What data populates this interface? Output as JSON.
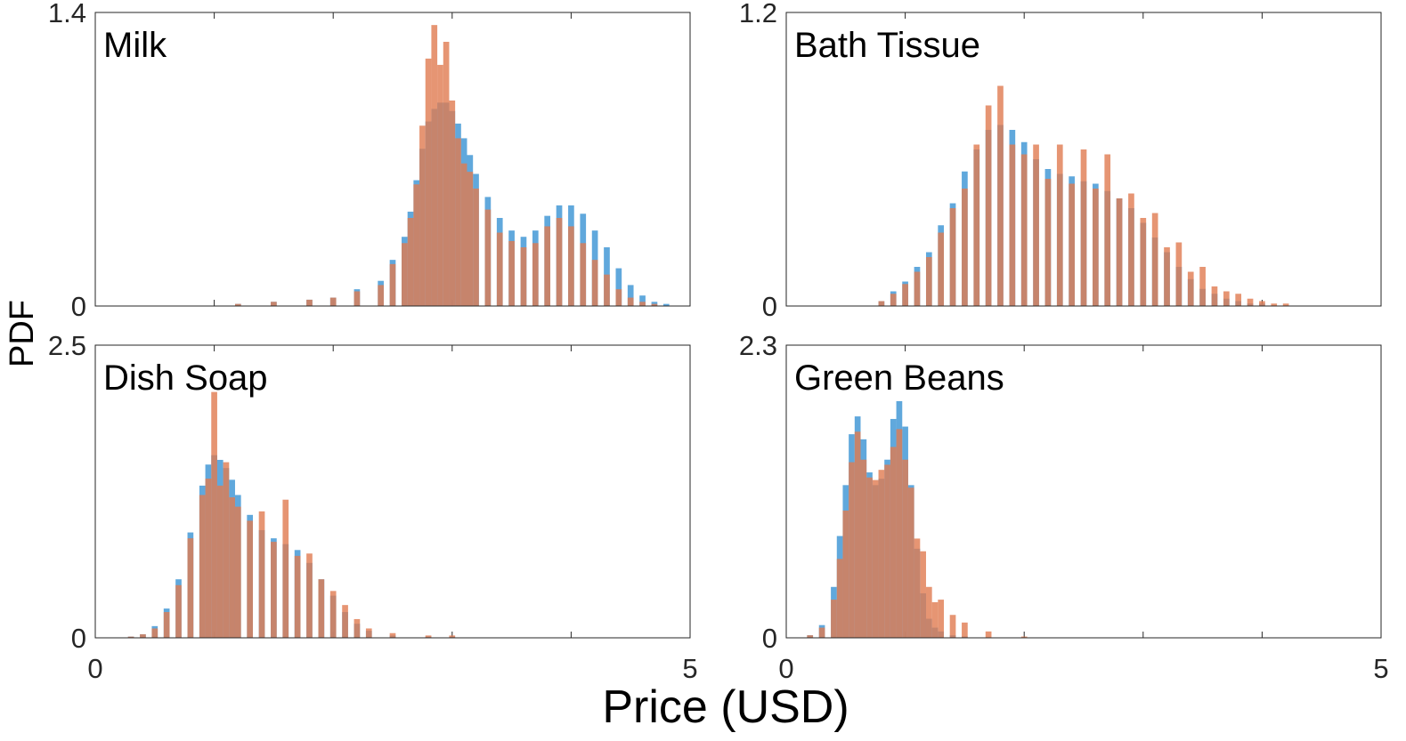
{
  "figure": {
    "xlabel": "Price (USD)",
    "ylabel": "PDF"
  },
  "colors": {
    "series_a": "#4f9fd8",
    "series_b": "#e07a50",
    "overlap": "#a66f5f",
    "axis": "#262626"
  },
  "chart_data": [
    {
      "type": "bar",
      "title": "Milk",
      "xlim": [
        0,
        5
      ],
      "ylim": [
        0,
        1.4
      ],
      "x_ticks": [
        "0",
        "5"
      ],
      "y_ticks": [
        "0",
        "1.4"
      ],
      "bin_width": 0.05,
      "series": [
        {
          "color": "#4f9fd8",
          "x": [
            1.2,
            1.5,
            1.8,
            2.0,
            2.2,
            2.4,
            2.5,
            2.6,
            2.65,
            2.7,
            2.75,
            2.8,
            2.85,
            2.9,
            2.95,
            3.0,
            3.05,
            3.1,
            3.15,
            3.2,
            3.3,
            3.4,
            3.5,
            3.6,
            3.7,
            3.8,
            3.9,
            4.0,
            4.1,
            4.2,
            4.3,
            4.4,
            4.5,
            4.6,
            4.7,
            4.8
          ],
          "y": [
            0.01,
            0.02,
            0.03,
            0.04,
            0.08,
            0.12,
            0.22,
            0.33,
            0.45,
            0.6,
            0.75,
            0.88,
            0.94,
            0.97,
            0.97,
            0.93,
            0.87,
            0.8,
            0.72,
            0.63,
            0.52,
            0.42,
            0.36,
            0.33,
            0.36,
            0.43,
            0.48,
            0.48,
            0.44,
            0.36,
            0.28,
            0.18,
            0.1,
            0.05,
            0.02,
            0.01
          ]
        },
        {
          "color": "#e07a50",
          "x": [
            1.2,
            1.5,
            1.8,
            2.0,
            2.2,
            2.4,
            2.5,
            2.6,
            2.65,
            2.7,
            2.75,
            2.8,
            2.85,
            2.9,
            2.95,
            3.0,
            3.05,
            3.1,
            3.15,
            3.2,
            3.3,
            3.4,
            3.5,
            3.6,
            3.7,
            3.8,
            3.9,
            4.0,
            4.1,
            4.2,
            4.3,
            4.4,
            4.5,
            4.6,
            4.7,
            4.8
          ],
          "y": [
            0.01,
            0.02,
            0.03,
            0.04,
            0.07,
            0.1,
            0.2,
            0.3,
            0.42,
            0.58,
            0.86,
            1.18,
            1.34,
            1.15,
            1.26,
            0.98,
            0.8,
            0.68,
            0.64,
            0.56,
            0.46,
            0.35,
            0.31,
            0.28,
            0.3,
            0.38,
            0.42,
            0.38,
            0.3,
            0.22,
            0.15,
            0.08,
            0.04,
            0.02,
            0.01,
            0.0
          ]
        }
      ]
    },
    {
      "type": "bar",
      "title": "Bath Tissue",
      "xlim": [
        0,
        5
      ],
      "ylim": [
        0,
        1.2
      ],
      "x_ticks": [
        "0",
        "5"
      ],
      "y_ticks": [
        "0",
        "1.2"
      ],
      "bin_width": 0.05,
      "series": [
        {
          "color": "#4f9fd8",
          "x": [
            0.6,
            0.8,
            0.9,
            1.0,
            1.1,
            1.2,
            1.3,
            1.4,
            1.5,
            1.6,
            1.7,
            1.8,
            1.9,
            2.0,
            2.1,
            2.2,
            2.3,
            2.4,
            2.5,
            2.6,
            2.7,
            2.8,
            2.9,
            3.0,
            3.1,
            3.2,
            3.3,
            3.4,
            3.5,
            3.6,
            3.7,
            3.8,
            3.9,
            4.0,
            4.1,
            4.2
          ],
          "y": [
            0.0,
            0.02,
            0.06,
            0.1,
            0.16,
            0.22,
            0.33,
            0.42,
            0.55,
            0.64,
            0.72,
            0.74,
            0.72,
            0.67,
            0.6,
            0.56,
            0.54,
            0.53,
            0.51,
            0.5,
            0.47,
            0.44,
            0.4,
            0.34,
            0.28,
            0.22,
            0.16,
            0.11,
            0.07,
            0.05,
            0.03,
            0.02,
            0.01,
            0.01,
            0.0,
            0.0
          ]
        },
        {
          "color": "#e07a50",
          "x": [
            0.6,
            0.8,
            0.9,
            1.0,
            1.1,
            1.2,
            1.3,
            1.4,
            1.5,
            1.6,
            1.7,
            1.8,
            1.9,
            2.0,
            2.1,
            2.2,
            2.3,
            2.4,
            2.5,
            2.6,
            2.7,
            2.8,
            2.9,
            3.0,
            3.1,
            3.2,
            3.3,
            3.4,
            3.5,
            3.6,
            3.7,
            3.8,
            3.9,
            4.0,
            4.1,
            4.2
          ],
          "y": [
            0.0,
            0.02,
            0.05,
            0.09,
            0.14,
            0.2,
            0.3,
            0.4,
            0.48,
            0.66,
            0.82,
            0.9,
            0.66,
            0.62,
            0.66,
            0.52,
            0.66,
            0.5,
            0.64,
            0.48,
            0.62,
            0.44,
            0.46,
            0.36,
            0.38,
            0.24,
            0.26,
            0.14,
            0.16,
            0.08,
            0.06,
            0.05,
            0.03,
            0.02,
            0.01,
            0.01
          ]
        }
      ]
    },
    {
      "type": "bar",
      "title": "Dish Soap",
      "xlim": [
        0,
        5
      ],
      "ylim": [
        0,
        2.5
      ],
      "x_ticks": [
        "0",
        "5"
      ],
      "y_ticks": [
        "0",
        "2.5"
      ],
      "bin_width": 0.05,
      "series": [
        {
          "color": "#4f9fd8",
          "x": [
            0.3,
            0.4,
            0.5,
            0.6,
            0.7,
            0.8,
            0.9,
            0.95,
            1.0,
            1.05,
            1.1,
            1.15,
            1.2,
            1.3,
            1.4,
            1.5,
            1.6,
            1.7,
            1.8,
            1.9,
            2.0,
            2.1,
            2.2,
            2.3,
            2.5,
            2.8,
            3.0
          ],
          "y": [
            0.01,
            0.03,
            0.1,
            0.25,
            0.5,
            0.9,
            1.3,
            1.48,
            1.56,
            1.52,
            1.45,
            1.35,
            1.22,
            1.05,
            0.92,
            0.85,
            0.8,
            0.75,
            0.64,
            0.5,
            0.36,
            0.22,
            0.12,
            0.06,
            0.02,
            0.01,
            0.01
          ]
        },
        {
          "color": "#e07a50",
          "x": [
            0.3,
            0.4,
            0.5,
            0.6,
            0.7,
            0.8,
            0.9,
            0.95,
            1.0,
            1.05,
            1.1,
            1.15,
            1.2,
            1.3,
            1.4,
            1.5,
            1.6,
            1.7,
            1.8,
            1.9,
            2.0,
            2.1,
            2.2,
            2.3,
            2.5,
            2.8,
            3.0
          ],
          "y": [
            0.01,
            0.03,
            0.08,
            0.22,
            0.45,
            0.85,
            1.22,
            1.36,
            2.1,
            1.3,
            1.5,
            1.2,
            1.12,
            1.0,
            1.08,
            0.82,
            1.18,
            0.7,
            0.72,
            0.5,
            0.4,
            0.28,
            0.16,
            0.08,
            0.04,
            0.02,
            0.02
          ]
        }
      ]
    },
    {
      "type": "bar",
      "title": "Green Beans",
      "xlim": [
        0,
        5
      ],
      "ylim": [
        0,
        2.3
      ],
      "x_ticks": [
        "0",
        "5"
      ],
      "y_ticks": [
        "0",
        "2.3"
      ],
      "bin_width": 0.05,
      "series": [
        {
          "color": "#4f9fd8",
          "x": [
            0.2,
            0.3,
            0.4,
            0.45,
            0.5,
            0.55,
            0.6,
            0.65,
            0.7,
            0.75,
            0.8,
            0.85,
            0.9,
            0.95,
            1.0,
            1.05,
            1.1,
            1.15,
            1.2,
            1.25,
            1.3,
            1.4,
            1.5,
            1.7,
            2.0
          ],
          "y": [
            0.02,
            0.1,
            0.4,
            0.8,
            1.2,
            1.6,
            1.74,
            1.56,
            1.3,
            1.2,
            1.25,
            1.4,
            1.72,
            1.86,
            1.66,
            1.2,
            0.7,
            0.35,
            0.15,
            0.08,
            0.05,
            0.02,
            0.01,
            0.0,
            0.0
          ]
        },
        {
          "color": "#e07a50",
          "x": [
            0.2,
            0.3,
            0.4,
            0.45,
            0.5,
            0.55,
            0.6,
            0.65,
            0.7,
            0.75,
            0.8,
            0.85,
            0.9,
            0.95,
            1.0,
            1.05,
            1.1,
            1.15,
            1.2,
            1.25,
            1.3,
            1.4,
            1.5,
            1.7,
            2.0
          ],
          "y": [
            0.02,
            0.08,
            0.3,
            0.62,
            1.0,
            1.38,
            1.62,
            1.4,
            1.26,
            1.24,
            1.32,
            1.36,
            1.5,
            1.64,
            1.4,
            1.18,
            0.78,
            0.68,
            0.4,
            0.28,
            0.3,
            0.18,
            0.12,
            0.05,
            0.01
          ]
        }
      ]
    }
  ]
}
